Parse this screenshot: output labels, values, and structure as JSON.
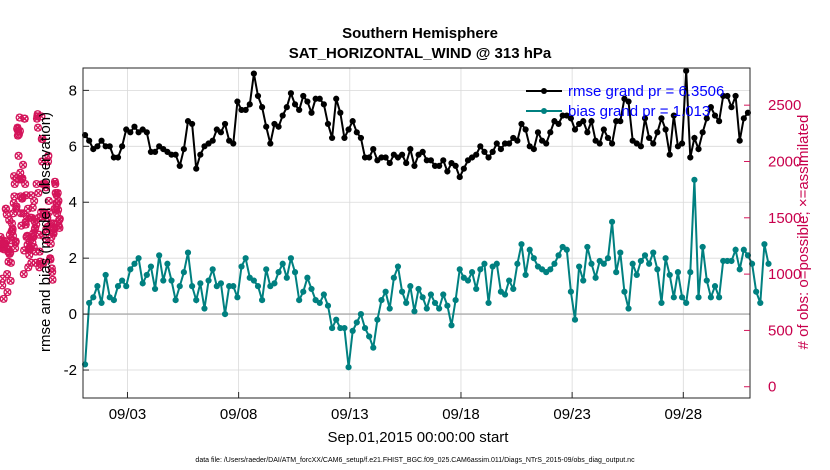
{
  "chart_data": {
    "type": "line",
    "title": "Southern Hemisphere",
    "subtitle": "SAT_HORIZONTAL_WIND @ 313 hPa",
    "xlabel": "Sep.01,2015 00:00:00 start",
    "ylabel": "rmse and bias (model - observation)",
    "y2label": "# of obs: o=possible; ×=assimilated",
    "footnote": "data file: /Users/raeder/DAI/ATM_forcXX/CAM6_setup/f.e21.FHIST_BGC.f09_025.CAM6assim.011/Diags_NTrS_2015-09/obs_diag_output.nc",
    "xlim": [
      0,
      60
    ],
    "ylim": [
      -3,
      8.8
    ],
    "y2lim": [
      -100,
      2830
    ],
    "xticks": [
      4,
      14,
      24,
      34,
      44,
      54
    ],
    "xticklabels": [
      "09/03",
      "09/08",
      "09/13",
      "09/18",
      "09/23",
      "09/28"
    ],
    "yticks": [
      -2,
      0,
      2,
      4,
      6,
      8
    ],
    "y2ticks": [
      0,
      500,
      1000,
      1500,
      2000,
      2500
    ],
    "grid": true,
    "legend_position": "top-right",
    "colors": {
      "rmse": "#000000",
      "bias": "#008080",
      "obs": "#d4145a",
      "zero": "#aaaaaa",
      "legend_text": "#0000ff"
    },
    "series": [
      {
        "name": "rmse grand pr = 6.3506",
        "axis": "left",
        "values": [
          6.4,
          6.2,
          5.9,
          6.0,
          6.2,
          6.0,
          6.0,
          5.6,
          5.6,
          6.0,
          6.6,
          6.5,
          6.7,
          6.5,
          6.6,
          6.5,
          5.8,
          5.8,
          6.0,
          5.9,
          5.8,
          5.7,
          5.7,
          5.3,
          5.9,
          6.9,
          6.8,
          5.2,
          5.7,
          6.0,
          6.1,
          6.2,
          6.6,
          6.5,
          6.8,
          6.2,
          6.1,
          7.6,
          7.3,
          7.3,
          7.5,
          8.6,
          7.8,
          7.4,
          6.7,
          6.1,
          6.8,
          6.7,
          7.1,
          7.4,
          7.9,
          7.5,
          7.3,
          7.8,
          7.6,
          7.2,
          7.7,
          7.7,
          7.5,
          6.8,
          6.3,
          7.7,
          7.2,
          6.3,
          6.6,
          6.9,
          6.5,
          6.3,
          5.6,
          5.6,
          5.9,
          5.5,
          5.6,
          5.6,
          5.4,
          5.7,
          5.6,
          5.7,
          5.4,
          5.9,
          5.3,
          5.7,
          5.8,
          5.5,
          5.5,
          5.3,
          5.3,
          5.5,
          5.1,
          5.4,
          5.3,
          4.9,
          5.2,
          5.5,
          5.6,
          5.7,
          6.0,
          5.8,
          5.6,
          5.8,
          6.1,
          5.9,
          6.1,
          6.1,
          6.3,
          6.2,
          6.8,
          6.6,
          6.0,
          5.9,
          6.5,
          6.2,
          6.1,
          6.5,
          6.9,
          6.8,
          7.1,
          7.1,
          7.0,
          6.6,
          6.8,
          6.9,
          6.5,
          6.9,
          6.2,
          6.1,
          6.6,
          6.3,
          6.1,
          6.9,
          6.9,
          7.7,
          7.6,
          6.2,
          6.1,
          6.0,
          7.0,
          6.3,
          6.1,
          6.5,
          7.0,
          6.6,
          5.7,
          7.1,
          6.0,
          6.1,
          8.7,
          5.6,
          6.3,
          5.9,
          6.5,
          7.0,
          7.4,
          7.1,
          6.9,
          7.8,
          7.8,
          7.4,
          7.8,
          6.2,
          7.0,
          7.2
        ]
      },
      {
        "name": "bias grand pr = 1.013",
        "axis": "left",
        "values": [
          -1.8,
          0.4,
          0.6,
          1.0,
          0.4,
          1.4,
          0.6,
          0.5,
          1.0,
          1.2,
          1.0,
          1.6,
          1.8,
          2.0,
          1.1,
          1.4,
          1.7,
          0.9,
          2.1,
          1.2,
          1.8,
          1.2,
          0.5,
          1.0,
          1.5,
          2.2,
          1.0,
          0.5,
          1.1,
          0.2,
          1.2,
          1.6,
          1.0,
          1.1,
          0.0,
          1.0,
          1.0,
          0.6,
          1.7,
          2.0,
          1.3,
          1.2,
          1.0,
          0.5,
          1.6,
          1.0,
          1.1,
          1.5,
          1.8,
          1.3,
          2.0,
          1.5,
          0.5,
          0.8,
          1.3,
          0.9,
          0.5,
          0.4,
          0.7,
          0.3,
          -0.5,
          -0.2,
          -0.5,
          -0.5,
          -1.9,
          -0.6,
          -0.3,
          0.0,
          -0.5,
          -0.8,
          -1.2,
          -0.2,
          0.5,
          0.8,
          0.2,
          1.3,
          1.7,
          0.8,
          0.4,
          1.0,
          0.1,
          0.9,
          0.6,
          0.2,
          0.7,
          0.4,
          0.2,
          0.7,
          0.3,
          -0.4,
          0.5,
          1.6,
          1.3,
          1.2,
          1.5,
          0.9,
          1.6,
          1.8,
          0.4,
          1.7,
          1.8,
          0.8,
          0.7,
          1.2,
          0.9,
          1.8,
          2.5,
          1.4,
          2.3,
          2.0,
          1.7,
          1.6,
          1.5,
          1.6,
          1.8,
          2.1,
          2.4,
          2.3,
          0.8,
          -0.2,
          1.7,
          1.2,
          2.4,
          1.8,
          1.3,
          1.9,
          1.8,
          2.0,
          3.3,
          1.5,
          2.2,
          0.8,
          0.2,
          1.8,
          1.4,
          1.9,
          2.1,
          1.8,
          2.2,
          1.6,
          0.4,
          2.0,
          1.4,
          0.6,
          1.5,
          0.6,
          0.4,
          1.5,
          4.8,
          0.6,
          2.4,
          1.2,
          0.6,
          1.0,
          0.6,
          1.9,
          1.9,
          1.9,
          2.3,
          1.6,
          2.3,
          2.1,
          1.8,
          0.8,
          0.4,
          2.5,
          1.8
        ]
      }
    ],
    "obs_possible": [
      1230,
      1330,
      1300,
      1270,
      1240,
      1230,
      900,
      960,
      1300,
      1270,
      780,
      1220,
      1250,
      1260,
      1270,
      1270,
      1580,
      1580,
      1290,
      1530,
      1000,
      840,
      1220,
      1200,
      1110,
      1220,
      1480,
      1180,
      1350,
      1190,
      940,
      1100,
      1300,
      1380,
      1450,
      1380,
      1400,
      1340,
      1540,
      1630,
      1870,
      1690,
      1800,
      1230,
      1280,
      1290,
      1580,
      1600,
      1850,
      2290,
      2300,
      2230,
      2270,
      2050,
      2240,
      1840,
      2390,
      2270,
      1900,
      1690,
      1540,
      1430,
      1840,
      1670,
      1850,
      1680,
      1970,
      1540,
      1000,
      1210,
      2380,
      2380,
      1800,
      1460,
      1440,
      1700,
      1330,
      1510,
      1340,
      1260,
      1580,
      1060,
      1220,
      1220,
      1170,
      1290,
      1220,
      1500,
      1500,
      1700,
      1100,
      1500,
      1330,
      1280,
      1590,
      1360,
      1330,
      1240,
      1650,
      1470,
      1400,
      1410,
      1100,
      1200,
      1440,
      1800,
      2380,
      2400,
      2420,
      2300,
      1720,
      1500,
      1350,
      1060,
      1200,
      1110,
      1090,
      1510,
      1550,
      2400,
      2200,
      2000,
      2200,
      1800,
      1340,
      1100,
      1550,
      1800,
      1800,
      1800,
      1800,
      1520,
      1770,
      1400,
      1300,
      1500,
      1500,
      1420,
      2000,
      2050,
      1650,
      1550,
      1400,
      1400,
      1140,
      1130,
      1270,
      1450,
      1330,
      1050,
      1020,
      950,
      1370,
      1450,
      1360,
      1410,
      1400,
      1580,
      1820,
      1800,
      1720,
      1570,
      1630,
      1700,
      1540,
      1630,
      1720,
      1570,
      1650,
      1430,
      1480,
      1410,
      1490
    ],
    "obs_assimilated": [
      1230,
      1330,
      1300,
      1270,
      1240,
      1230,
      900,
      960,
      1300,
      1270,
      780,
      1220,
      1250,
      1260,
      1270,
      1270,
      1580,
      1580,
      1290,
      1530,
      1000,
      840,
      1220,
      1200,
      1110,
      1220,
      1480,
      1180,
      1350,
      1190,
      940,
      1100,
      1300,
      1380,
      1450,
      1380,
      1400,
      1340,
      1540,
      1630,
      1870,
      1690,
      1800,
      1230,
      1280,
      1290,
      1580,
      1600,
      1850,
      2290,
      2300,
      2230,
      2270,
      2050,
      2240,
      1840,
      2390,
      2270,
      1900,
      1690,
      1540,
      1430,
      1840,
      1670,
      1850,
      1680,
      1970,
      1540,
      1000,
      1210,
      2380,
      2380,
      1800,
      1460,
      1440,
      1700,
      1330,
      1510,
      1340,
      1260,
      1580,
      1060,
      1220,
      1220,
      1170,
      1290,
      1220,
      1500,
      1500,
      1700,
      1100,
      1500,
      1330,
      1280,
      1590,
      1360,
      1330,
      1240,
      1650,
      1470,
      1400,
      1410,
      1100,
      1200,
      1440,
      1800,
      2380,
      2400,
      2420,
      2300,
      1720,
      1500,
      1350,
      1060,
      1200,
      1110,
      1090,
      1510,
      1550,
      2400,
      2200,
      2000,
      2200,
      1800,
      1340,
      1100,
      1550,
      1800,
      1800,
      1800,
      1800,
      1520,
      1770,
      1400,
      1300,
      1500,
      1500,
      1420,
      2000,
      2050,
      1650,
      1550,
      1400,
      1400,
      1140,
      1130,
      1270,
      1450,
      1330,
      1050,
      1020,
      950,
      1370,
      1450,
      1360,
      1410,
      1400,
      1580,
      1820,
      1800,
      1720,
      1570,
      1630,
      1700,
      1540,
      1630,
      1720,
      1570,
      1650,
      1430,
      1480,
      1410,
      1490
    ]
  }
}
